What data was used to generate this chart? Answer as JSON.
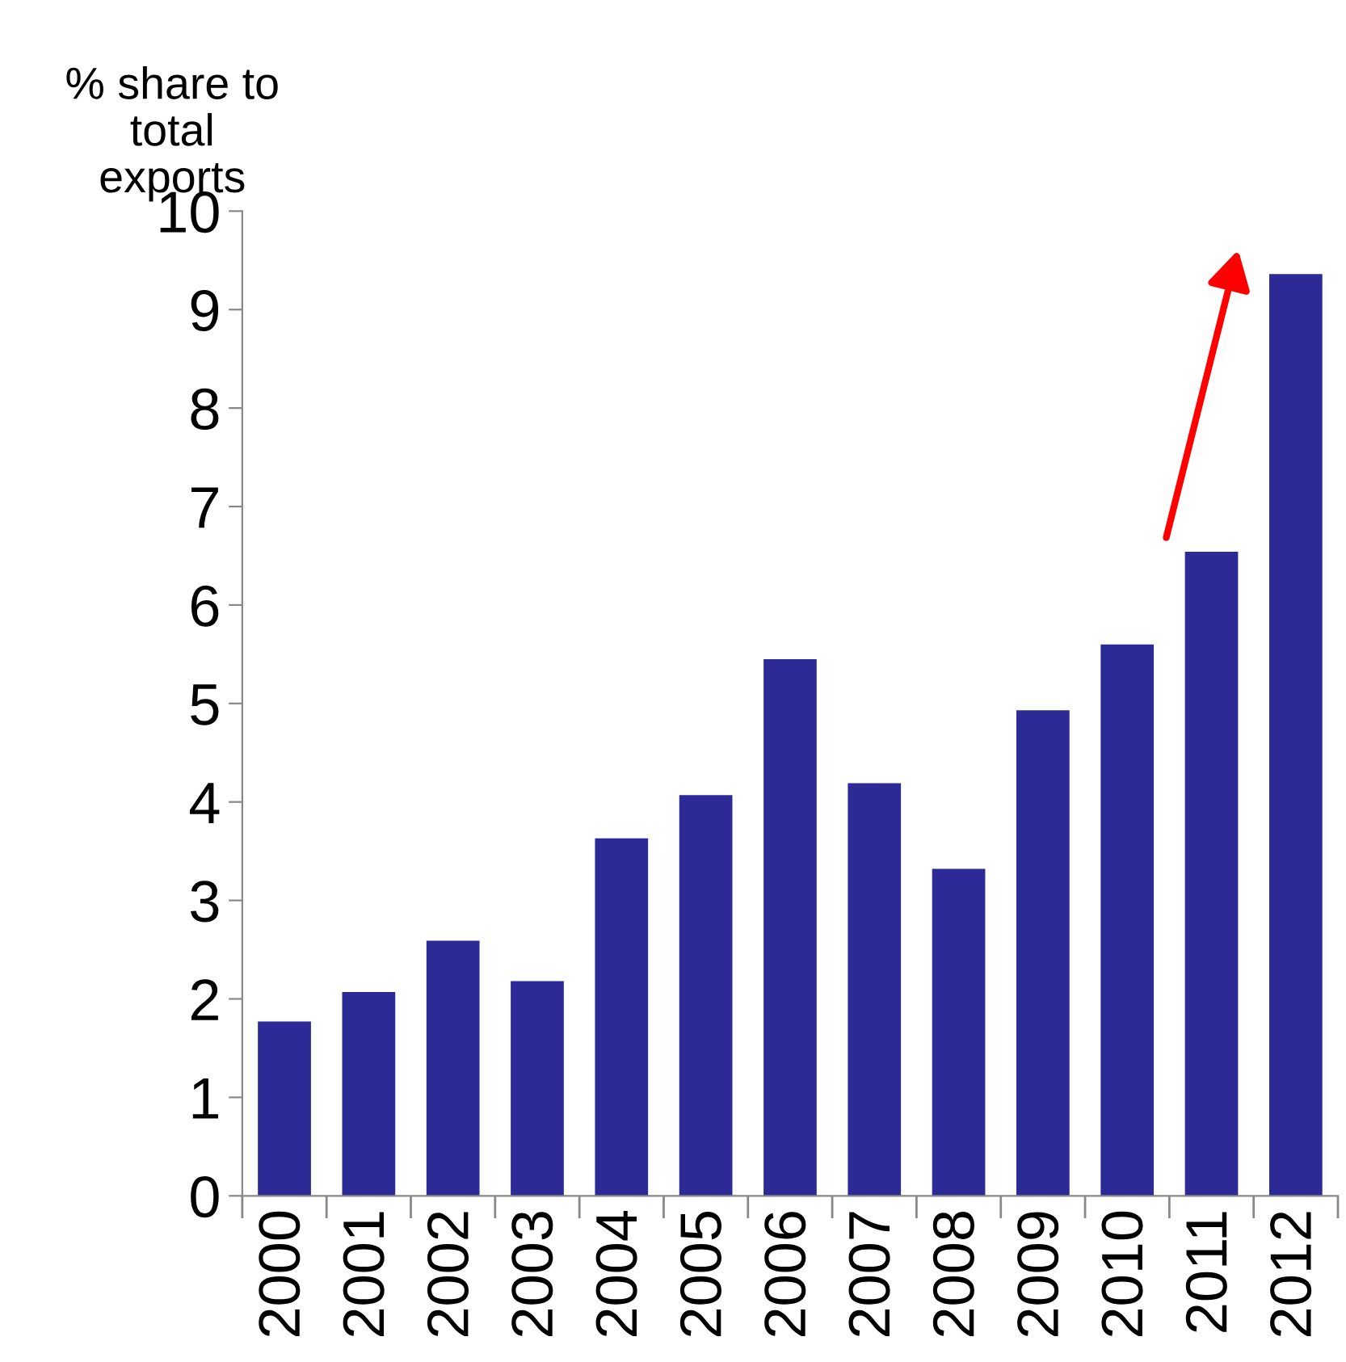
{
  "chart_data": {
    "type": "bar",
    "ylabel": "% share to\ntotal\nexports",
    "categories": [
      "2000",
      "2001",
      "2002",
      "2003",
      "2004",
      "2005",
      "2006",
      "2007",
      "2008",
      "2009",
      "2010",
      "2011",
      "2012"
    ],
    "values": [
      1.77,
      2.07,
      2.59,
      2.18,
      3.63,
      4.07,
      5.45,
      4.19,
      3.32,
      4.93,
      5.6,
      6.54,
      9.36
    ],
    "color": "#2b2a96",
    "ylim": [
      0,
      10
    ],
    "yticks": [
      0,
      1,
      2,
      3,
      4,
      5,
      6,
      7,
      8,
      9,
      10
    ],
    "grid": false,
    "legend": false
  }
}
